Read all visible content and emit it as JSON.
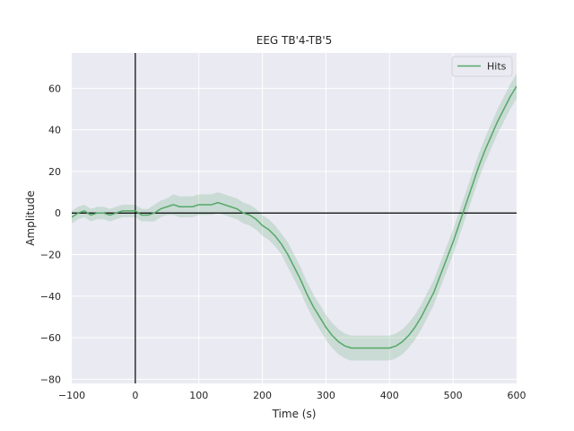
{
  "chart_data": {
    "type": "line",
    "title": "EEG TB'4-TB'5",
    "xlabel": "Time (s)",
    "ylabel": "Amplitude",
    "xlim": [
      -100,
      600
    ],
    "ylim": [
      -82,
      77
    ],
    "xticks": [
      -100,
      0,
      100,
      200,
      300,
      400,
      500,
      600
    ],
    "yticks": [
      -80,
      -60,
      -40,
      -20,
      0,
      20,
      40,
      60
    ],
    "grid": true,
    "background_color": "#eaeaf2",
    "reference_lines": {
      "x": 0,
      "y": 0
    },
    "legend": {
      "position": "top-right",
      "entries": [
        "Hits"
      ]
    },
    "series": [
      {
        "name": "Hits",
        "color": "#55a868",
        "band_color": "#55a868",
        "x": [
          -100,
          -90,
          -80,
          -70,
          -60,
          -50,
          -40,
          -30,
          -20,
          -10,
          0,
          10,
          20,
          30,
          40,
          50,
          60,
          70,
          80,
          90,
          100,
          110,
          120,
          130,
          140,
          150,
          160,
          170,
          180,
          190,
          200,
          210,
          220,
          230,
          240,
          250,
          260,
          270,
          280,
          290,
          300,
          310,
          320,
          330,
          340,
          350,
          360,
          370,
          380,
          390,
          400,
          410,
          420,
          430,
          440,
          450,
          460,
          470,
          480,
          490,
          500,
          510,
          520,
          530,
          540,
          550,
          560,
          570,
          580,
          590,
          600
        ],
        "values": [
          -2,
          0,
          1,
          -1,
          0,
          0,
          -1,
          0,
          1,
          1,
          1,
          -1,
          -1,
          0,
          2,
          3,
          4,
          3,
          3,
          3,
          4,
          4,
          4,
          5,
          4,
          3,
          2,
          0,
          -1,
          -3,
          -6,
          -8,
          -11,
          -15,
          -20,
          -26,
          -32,
          -39,
          -45,
          -50,
          -55,
          -59,
          -62,
          -64,
          -65,
          -65,
          -65,
          -65,
          -65,
          -65,
          -65,
          -64,
          -62,
          -59,
          -55,
          -50,
          -44,
          -38,
          -30,
          -22,
          -14,
          -5,
          4,
          13,
          22,
          30,
          37,
          44,
          50,
          56,
          61
        ],
        "ci_halfwidth": [
          3,
          3,
          3,
          3,
          3,
          3,
          3,
          3,
          3,
          3,
          3,
          3,
          3,
          4,
          4,
          4,
          5,
          5,
          5,
          5,
          5,
          5,
          5,
          5,
          5,
          5,
          5,
          5,
          5,
          5,
          5,
          5,
          5,
          5,
          6,
          6,
          6,
          6,
          6,
          6,
          6,
          6,
          6,
          6,
          6,
          6,
          6,
          6,
          6,
          6,
          6,
          6,
          6,
          6,
          6,
          6,
          6,
          6,
          6,
          6,
          6,
          6,
          6,
          6,
          6,
          6,
          6,
          6,
          6,
          6,
          6
        ]
      }
    ]
  }
}
